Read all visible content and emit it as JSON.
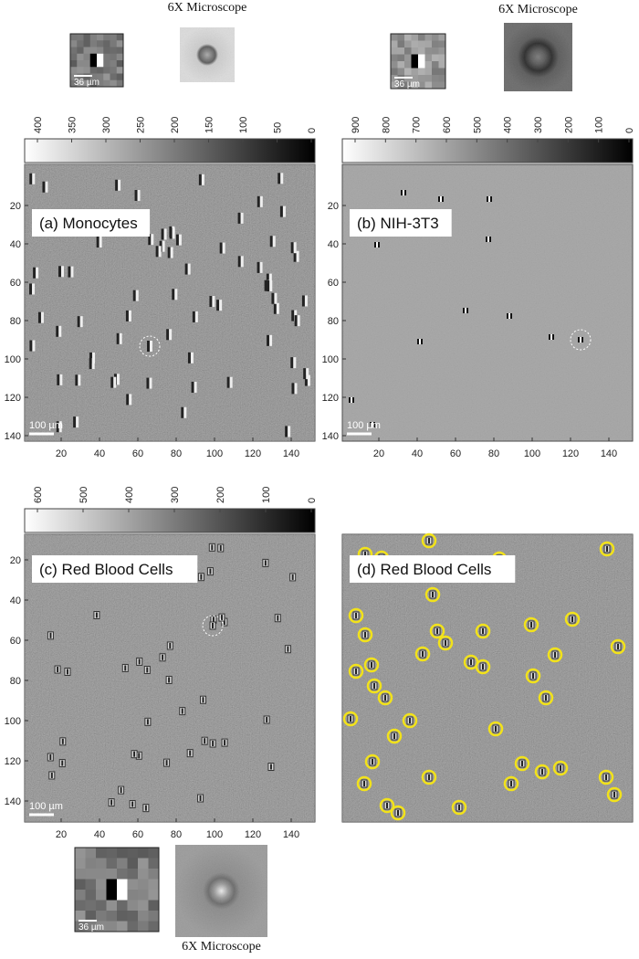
{
  "panels": [
    {
      "label": "(a) Monocytes",
      "colorbar_ticks": [
        400,
        350,
        300,
        250,
        200,
        150,
        100,
        50,
        0
      ],
      "y_ticks": [
        20,
        40,
        60,
        80,
        100,
        120,
        140
      ],
      "x_ticks": [
        20,
        40,
        60,
        80,
        100,
        120,
        140
      ],
      "scale_bar": "100 µm",
      "inset_scale": "36 µm",
      "inset_caption": "6X Microscope"
    },
    {
      "label": "(b) NIH-3T3",
      "colorbar_ticks": [
        900,
        800,
        700,
        600,
        500,
        400,
        300,
        200,
        100,
        0
      ],
      "y_ticks": [
        20,
        40,
        60,
        80,
        100,
        120,
        140
      ],
      "x_ticks": [
        20,
        40,
        60,
        80,
        100,
        120,
        140
      ],
      "scale_bar": "100 µm",
      "inset_scale": "36 µm",
      "inset_caption": "6X Microscope"
    },
    {
      "label": "(c) Red Blood Cells",
      "colorbar_ticks": [
        600,
        500,
        400,
        300,
        200,
        100,
        0
      ],
      "y_ticks": [
        20,
        40,
        60,
        80,
        100,
        120,
        140
      ],
      "x_ticks": [
        20,
        40,
        60,
        80,
        100,
        120,
        140
      ],
      "scale_bar": "100 µm",
      "inset_scale": "36 µm",
      "inset_caption": "6X Microscope"
    },
    {
      "label": "(d) Red Blood Cells"
    }
  ]
}
